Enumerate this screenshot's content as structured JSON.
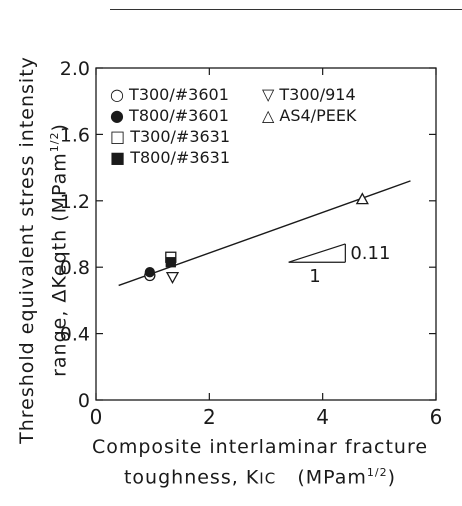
{
  "header_strip": "　　　　　　　　　　",
  "chart_data": {
    "type": "scatter",
    "title": "",
    "xlabel_line1": "Composite interlaminar fracture",
    "xlabel_line2": "toughness, ",
    "xlabel_sym": "K",
    "xlabel_sub": "IC",
    "xlabel_unit": "(MPam",
    "xlabel_unit_sup": "1/2",
    "xlabel_unit_close": ")",
    "ylabel_line1": "Threshold equivalent stress intensity",
    "ylabel_line2": "range, ΔKeqth (MPam",
    "ylabel_line2_sup": "1/2",
    "ylabel_line2_close": ")",
    "xlim": [
      0,
      6
    ],
    "ylim": [
      0,
      2.0
    ],
    "xticks": [
      "0",
      "2",
      "4",
      "6"
    ],
    "yticks": [
      "0",
      "0.4",
      "0.8",
      "1.2",
      "1.6",
      "2.0"
    ],
    "ytick_values": [
      0,
      0.4,
      0.8,
      1.2,
      1.6,
      2.0
    ],
    "xtick_values": [
      0,
      2,
      4,
      6
    ],
    "grid": false,
    "legend_left": [
      {
        "label": "T300/#3601",
        "marker": "○"
      },
      {
        "label": "T800/#3601",
        "marker": "●"
      },
      {
        "label": "T300/#3631",
        "marker": "□"
      },
      {
        "label": "T800/#3631",
        "marker": "■"
      }
    ],
    "legend_right": [
      {
        "label": "T300/914",
        "marker": "▽"
      },
      {
        "label": "AS4/PEEK",
        "marker": "△"
      }
    ],
    "series": [
      {
        "name": "T300/#3601",
        "marker": "circle-open",
        "points": [
          [
            0.95,
            0.75
          ]
        ]
      },
      {
        "name": "T800/#3601",
        "marker": "circle-filled",
        "points": [
          [
            0.95,
            0.77
          ]
        ]
      },
      {
        "name": "T300/#3631",
        "marker": "square-open",
        "points": [
          [
            1.32,
            0.86
          ]
        ]
      },
      {
        "name": "T800/#3631",
        "marker": "square-filled",
        "points": [
          [
            1.32,
            0.83
          ]
        ]
      },
      {
        "name": "T300/914",
        "marker": "triangle-down",
        "points": [
          [
            1.35,
            0.74
          ]
        ]
      },
      {
        "name": "AS4/PEEK",
        "marker": "triangle-up",
        "points": [
          [
            4.7,
            1.21
          ]
        ]
      }
    ],
    "fit_line": {
      "x": [
        0.4,
        5.55
      ],
      "y": [
        0.69,
        1.32
      ]
    },
    "slope_annotation": {
      "value": "0.11",
      "run": "1",
      "x": [
        3.4,
        4.4
      ],
      "y": [
        0.83,
        0.94
      ]
    }
  }
}
